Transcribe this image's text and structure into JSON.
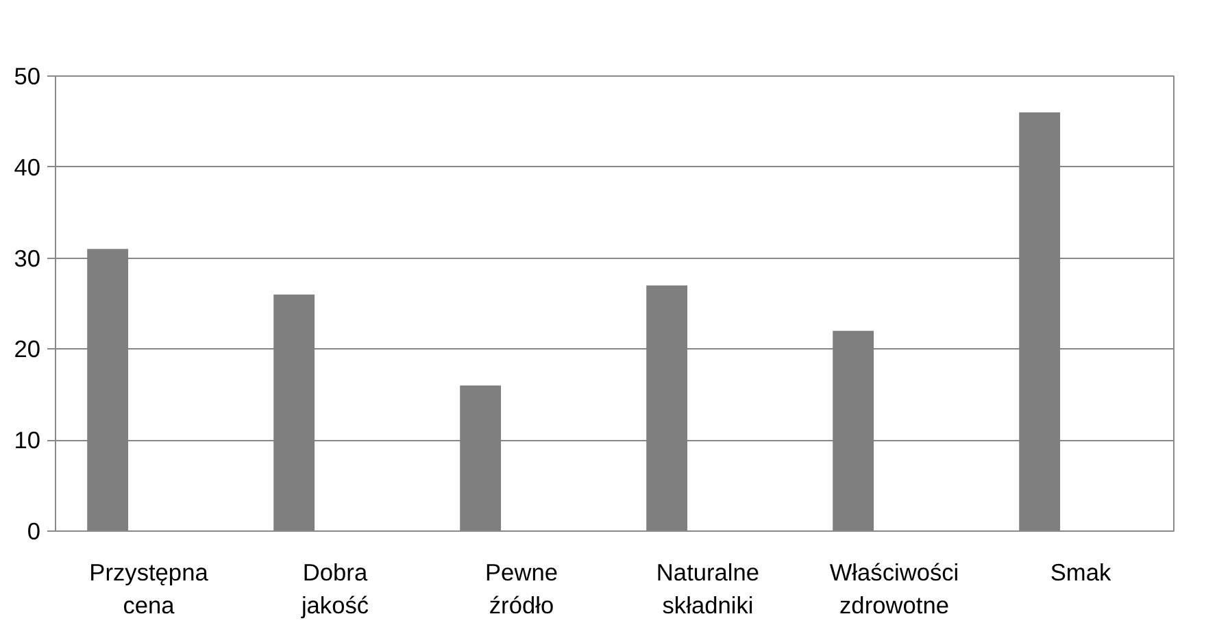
{
  "chart_data": {
    "type": "bar",
    "categories": [
      "Przystępna cena",
      "Dobra jakość",
      "Pewne źródło",
      "Naturalne składniki",
      "Właściwości zdrowotne",
      "Smak"
    ],
    "values": [
      31,
      26,
      16,
      27,
      22,
      46
    ],
    "color": "#7f7f7f",
    "ylim": [
      0,
      50
    ],
    "yticks": [
      0,
      10,
      20,
      30,
      40,
      50
    ],
    "grid": "y"
  }
}
